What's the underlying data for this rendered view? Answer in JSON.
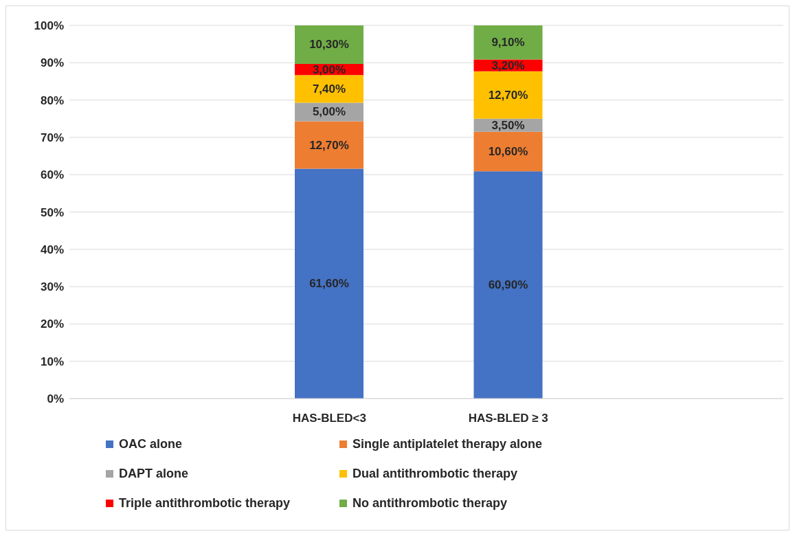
{
  "chart_data": {
    "type": "bar",
    "stacked": true,
    "categories": [
      "HAS-BLED<3",
      "HAS-BLED ≥ 3"
    ],
    "series": [
      {
        "name": "OAC alone",
        "color": "#4472c4",
        "values": [
          61.6,
          60.9
        ],
        "value_labels": [
          "61,60%",
          "60,90%"
        ]
      },
      {
        "name": "Single antiplatelet therapy alone",
        "color": "#ed7d31",
        "values": [
          12.7,
          10.6
        ],
        "value_labels": [
          "12,70%",
          "10,60%"
        ]
      },
      {
        "name": "DAPT alone",
        "color": "#a5a5a5",
        "values": [
          5.0,
          3.5
        ],
        "value_labels": [
          "5,00%",
          "3,50%"
        ]
      },
      {
        "name": "Dual antithrombotic therapy",
        "color": "#ffc000",
        "values": [
          7.4,
          12.7
        ],
        "value_labels": [
          "7,40%",
          "12,70%"
        ]
      },
      {
        "name": "Triple antithrombotic therapy",
        "color": "#ff0000",
        "values": [
          3.0,
          3.2
        ],
        "value_labels": [
          "3,00%",
          "3,20%"
        ]
      },
      {
        "name": "No antithrombotic therapy",
        "color": "#70ad47",
        "values": [
          10.3,
          9.1
        ],
        "value_labels": [
          "10,30%",
          "9,10%"
        ]
      }
    ],
    "ylim": [
      0,
      100
    ],
    "yticks": [
      {
        "value": 0,
        "label": "0%"
      },
      {
        "value": 10,
        "label": "10%"
      },
      {
        "value": 20,
        "label": "20%"
      },
      {
        "value": 30,
        "label": "30%"
      },
      {
        "value": 40,
        "label": "40%"
      },
      {
        "value": 50,
        "label": "50%"
      },
      {
        "value": 60,
        "label": "60%"
      },
      {
        "value": 70,
        "label": "70%"
      },
      {
        "value": 80,
        "label": "80%"
      },
      {
        "value": 90,
        "label": "90%"
      },
      {
        "value": 100,
        "label": "100%"
      }
    ],
    "grid": "y",
    "legend": "bottom"
  }
}
